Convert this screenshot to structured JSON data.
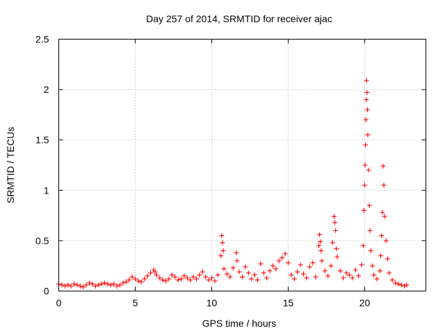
{
  "chart_data": {
    "type": "scatter",
    "title": "Day 257 of 2014, SRMTID for receiver ajac",
    "xlabel": "GPS time / hours",
    "ylabel": "SRMTID / TECUs",
    "xlim": [
      0,
      24
    ],
    "ylim": [
      0,
      2.5
    ],
    "x_ticks": [
      0,
      5,
      10,
      15,
      20
    ],
    "x_tick_labels": [
      "0",
      "5",
      "10",
      "15",
      "20"
    ],
    "y_ticks": [
      0,
      0.5,
      1,
      1.5,
      2,
      2.5
    ],
    "y_tick_labels": [
      "0",
      "0.5",
      "1",
      "1.5",
      "2",
      "2.5"
    ],
    "grid": true,
    "marker": "+",
    "series": [
      {
        "name": "SRMTID",
        "color": "#ff0000",
        "x": [
          0.0,
          0.2,
          0.4,
          0.6,
          0.8,
          1.0,
          1.2,
          1.4,
          1.6,
          1.8,
          2.0,
          2.2,
          2.4,
          2.6,
          2.8,
          3.0,
          3.2,
          3.4,
          3.6,
          3.8,
          4.0,
          4.2,
          4.4,
          4.6,
          4.8,
          5.0,
          5.2,
          5.4,
          5.6,
          5.8,
          6.0,
          6.2,
          6.3,
          6.4,
          6.6,
          6.8,
          7.0,
          7.2,
          7.4,
          7.6,
          7.8,
          8.0,
          8.2,
          8.4,
          8.6,
          8.8,
          9.0,
          9.2,
          9.4,
          9.6,
          9.8,
          10.0,
          10.2,
          10.4,
          10.6,
          10.65,
          10.7,
          10.75,
          10.8,
          11.0,
          11.2,
          11.4,
          11.6,
          11.65,
          11.8,
          12.0,
          12.2,
          12.4,
          12.6,
          12.8,
          13.0,
          13.2,
          13.4,
          13.6,
          13.8,
          14.0,
          14.2,
          14.4,
          14.6,
          14.8,
          15.0,
          15.2,
          15.4,
          15.6,
          15.8,
          16.0,
          16.2,
          16.4,
          16.6,
          16.8,
          17.0,
          17.05,
          17.1,
          17.15,
          17.2,
          17.4,
          17.6,
          17.8,
          17.9,
          18.0,
          18.05,
          18.1,
          18.15,
          18.2,
          18.4,
          18.6,
          18.8,
          19.0,
          19.2,
          19.4,
          19.6,
          19.8,
          19.9,
          19.95,
          20.0,
          20.02,
          20.05,
          20.08,
          20.1,
          20.12,
          20.15,
          20.18,
          20.2,
          20.25,
          20.3,
          20.35,
          20.4,
          20.5,
          20.6,
          20.8,
          21.0,
          21.05,
          21.1,
          21.15,
          21.2,
          21.25,
          21.3,
          21.4,
          21.5,
          21.6,
          21.8,
          22.0,
          22.2,
          22.4,
          22.6,
          22.75
        ],
        "y": [
          0.07,
          0.06,
          0.05,
          0.06,
          0.05,
          0.07,
          0.06,
          0.05,
          0.04,
          0.06,
          0.08,
          0.07,
          0.05,
          0.06,
          0.07,
          0.08,
          0.07,
          0.06,
          0.07,
          0.05,
          0.06,
          0.08,
          0.09,
          0.11,
          0.14,
          0.12,
          0.1,
          0.09,
          0.12,
          0.15,
          0.18,
          0.21,
          0.19,
          0.16,
          0.13,
          0.11,
          0.1,
          0.12,
          0.16,
          0.14,
          0.11,
          0.12,
          0.15,
          0.13,
          0.11,
          0.14,
          0.12,
          0.16,
          0.19,
          0.14,
          0.11,
          0.13,
          0.1,
          0.16,
          0.35,
          0.55,
          0.48,
          0.4,
          0.22,
          0.17,
          0.14,
          0.23,
          0.38,
          0.3,
          0.19,
          0.14,
          0.24,
          0.18,
          0.12,
          0.16,
          0.11,
          0.27,
          0.18,
          0.13,
          0.2,
          0.25,
          0.22,
          0.3,
          0.33,
          0.37,
          0.28,
          0.16,
          0.12,
          0.19,
          0.26,
          0.17,
          0.13,
          0.24,
          0.28,
          0.14,
          0.45,
          0.56,
          0.49,
          0.4,
          0.3,
          0.2,
          0.15,
          0.25,
          0.48,
          0.74,
          0.68,
          0.6,
          0.42,
          0.34,
          0.2,
          0.13,
          0.18,
          0.16,
          0.13,
          0.21,
          0.15,
          0.26,
          0.45,
          0.8,
          1.05,
          1.25,
          1.45,
          1.7,
          1.9,
          2.09,
          1.97,
          1.8,
          1.55,
          1.2,
          0.85,
          0.6,
          0.4,
          0.25,
          0.16,
          0.12,
          0.2,
          0.35,
          0.55,
          0.78,
          1.24,
          1.05,
          0.74,
          0.5,
          0.32,
          0.18,
          0.11,
          0.08,
          0.07,
          0.06,
          0.05,
          0.06
        ]
      }
    ]
  }
}
